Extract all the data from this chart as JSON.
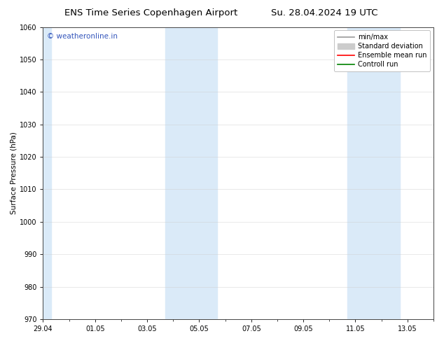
{
  "title_left": "ENS Time Series Copenhagen Airport",
  "title_right": "Su. 28.04.2024 19 UTC",
  "ylabel": "Surface Pressure (hPa)",
  "ylim": [
    970,
    1060
  ],
  "yticks": [
    970,
    980,
    990,
    1000,
    1010,
    1020,
    1030,
    1040,
    1050,
    1060
  ],
  "xtick_labels": [
    "29.04",
    "01.05",
    "03.05",
    "05.05",
    "07.05",
    "09.05",
    "11.05",
    "13.05"
  ],
  "xtick_positions": [
    0,
    2,
    4,
    6,
    8,
    10,
    12,
    14
  ],
  "xlim": [
    0,
    15
  ],
  "weekend_shading": [
    {
      "start": 0,
      "end": 0.3
    },
    {
      "start": 4.7,
      "end": 6.7
    },
    {
      "start": 11.7,
      "end": 13.7
    }
  ],
  "shade_color": "#daeaf8",
  "shade_alpha": 1.0,
  "watermark_text": "© weatheronline.in",
  "watermark_color": "#3355bb",
  "legend_items": [
    {
      "label": "min/max",
      "color": "#999999",
      "lw": 1.2
    },
    {
      "label": "Standard deviation",
      "color": "#cccccc",
      "lw": 5
    },
    {
      "label": "Ensemble mean run",
      "color": "red",
      "lw": 1.2
    },
    {
      "label": "Controll run",
      "color": "green",
      "lw": 1.2
    }
  ],
  "grid_color": "#cccccc",
  "grid_alpha": 0.6,
  "bg_color": "#ffffff",
  "spine_color": "#444444",
  "font_size_title": 9.5,
  "font_size_axis": 7.5,
  "font_size_tick": 7.0,
  "font_size_legend": 7.0,
  "font_size_watermark": 7.5
}
